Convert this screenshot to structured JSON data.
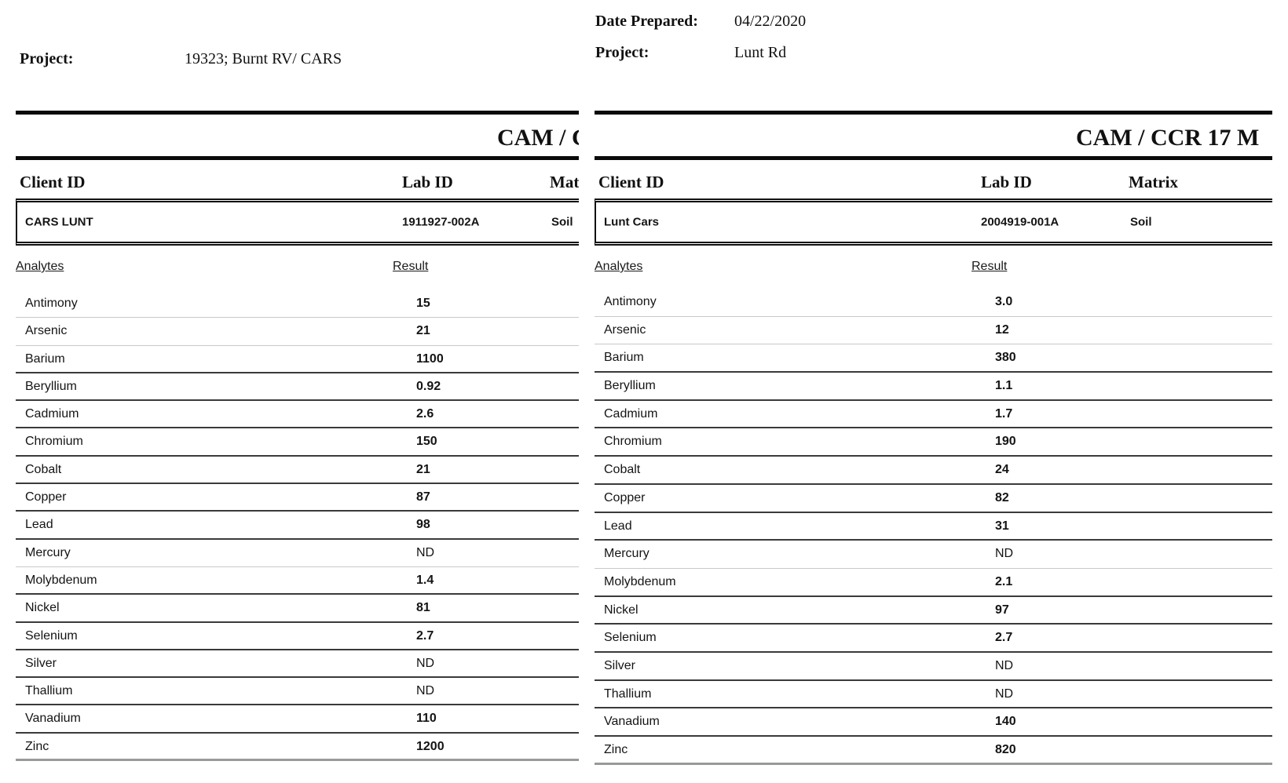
{
  "shared": {
    "report_title": "CAM / CCR 17 M",
    "columns": {
      "client_id": "Client ID",
      "lab_id": "Lab ID",
      "matrix": "Matrix",
      "analytes": "Analytes",
      "result": "Result"
    },
    "colors": {
      "text": "#141414",
      "heavy_rule": "#0a0a0a",
      "dark_separator": "#3a3a3a",
      "light_separator": "#c9c9c9",
      "end_rule": "#999999"
    }
  },
  "pages": [
    {
      "fields": [
        {
          "label": "Project:",
          "value": "19323; Burnt RV/ CARS"
        }
      ],
      "sample": {
        "client_id": "CARS LUNT",
        "lab_id": "1911927-002A",
        "matrix": "Soil"
      },
      "rows": [
        {
          "analyte": "Antimony",
          "result": "15"
        },
        {
          "analyte": "Arsenic",
          "result": "21"
        },
        {
          "analyte": "Barium",
          "result": "1100"
        },
        {
          "analyte": "Beryllium",
          "result": "0.92"
        },
        {
          "analyte": "Cadmium",
          "result": "2.6"
        },
        {
          "analyte": "Chromium",
          "result": "150"
        },
        {
          "analyte": "Cobalt",
          "result": "21"
        },
        {
          "analyte": "Copper",
          "result": "87"
        },
        {
          "analyte": "Lead",
          "result": "98"
        },
        {
          "analyte": "Mercury",
          "result": "ND"
        },
        {
          "analyte": "Molybdenum",
          "result": "1.4"
        },
        {
          "analyte": "Nickel",
          "result": "81"
        },
        {
          "analyte": "Selenium",
          "result": "2.7"
        },
        {
          "analyte": "Silver",
          "result": "ND"
        },
        {
          "analyte": "Thallium",
          "result": "ND"
        },
        {
          "analyte": "Vanadium",
          "result": "110"
        },
        {
          "analyte": "Zinc",
          "result": "1200"
        }
      ]
    },
    {
      "fields": [
        {
          "label": "Date Prepared:",
          "value": "04/22/2020"
        },
        {
          "label": "Project:",
          "value": "Lunt Rd"
        }
      ],
      "sample": {
        "client_id": "Lunt Cars",
        "lab_id": "2004919-001A",
        "matrix": "Soil"
      },
      "rows": [
        {
          "analyte": "Antimony",
          "result": "3.0"
        },
        {
          "analyte": "Arsenic",
          "result": "12"
        },
        {
          "analyte": "Barium",
          "result": "380"
        },
        {
          "analyte": "Beryllium",
          "result": "1.1"
        },
        {
          "analyte": "Cadmium",
          "result": "1.7"
        },
        {
          "analyte": "Chromium",
          "result": "190"
        },
        {
          "analyte": "Cobalt",
          "result": "24"
        },
        {
          "analyte": "Copper",
          "result": "82"
        },
        {
          "analyte": "Lead",
          "result": "31"
        },
        {
          "analyte": "Mercury",
          "result": "ND"
        },
        {
          "analyte": "Molybdenum",
          "result": "2.1"
        },
        {
          "analyte": "Nickel",
          "result": "97"
        },
        {
          "analyte": "Selenium",
          "result": "2.7"
        },
        {
          "analyte": "Silver",
          "result": "ND"
        },
        {
          "analyte": "Thallium",
          "result": "ND"
        },
        {
          "analyte": "Vanadium",
          "result": "140"
        },
        {
          "analyte": "Zinc",
          "result": "820"
        }
      ]
    }
  ]
}
